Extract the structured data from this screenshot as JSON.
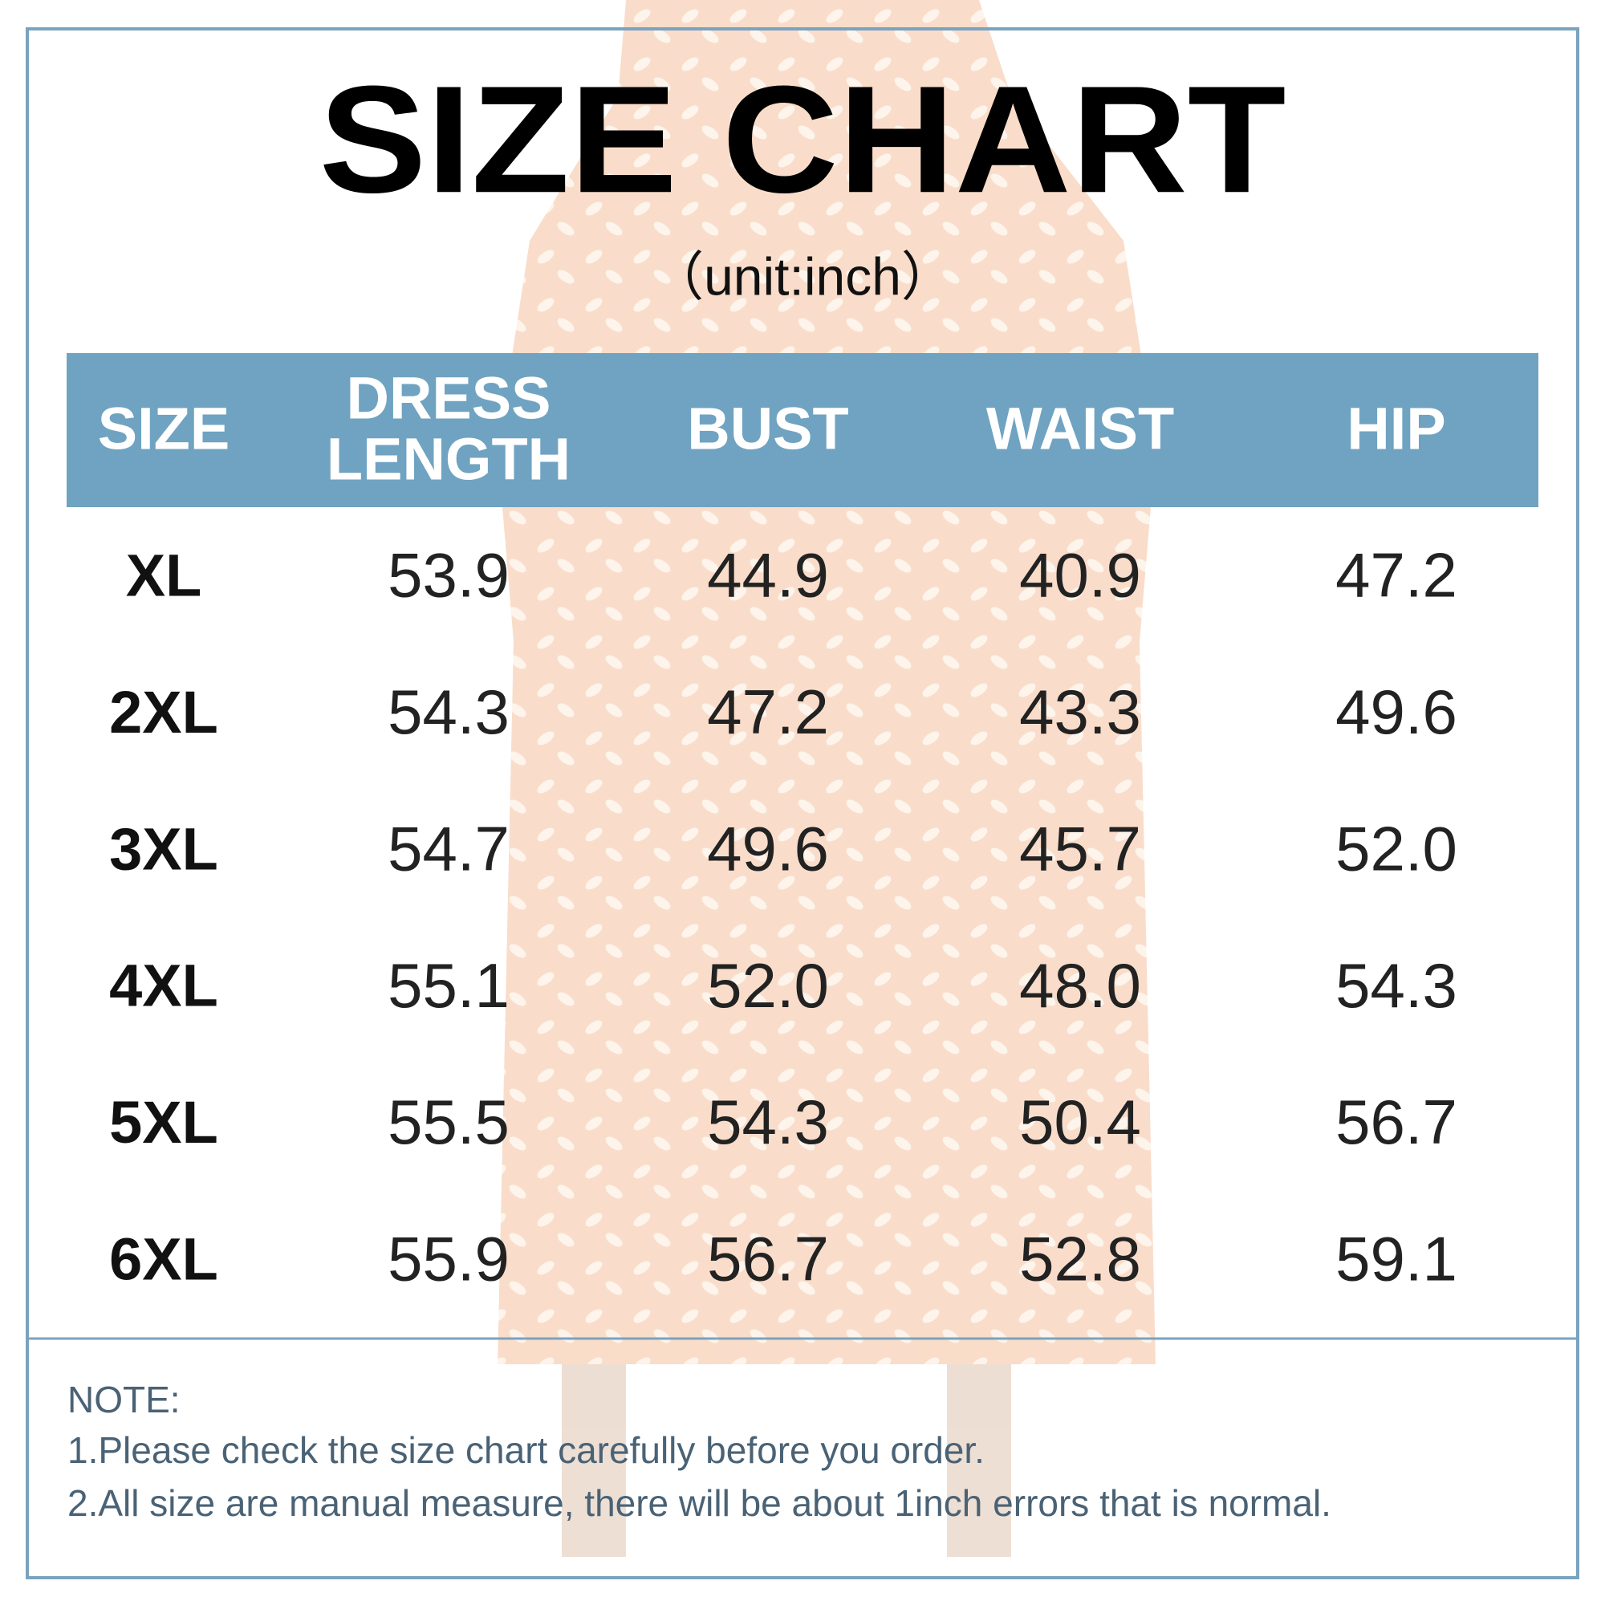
{
  "header": {
    "title": "SIZE CHART",
    "subtitle": "（unit:inch）"
  },
  "table": {
    "headers": [
      "SIZE",
      [
        "DRESS",
        "LENGTH"
      ],
      "BUST",
      "WAIST",
      "HIP"
    ],
    "rows": [
      [
        "XL",
        "53.9",
        "44.9",
        "40.9",
        "47.2"
      ],
      [
        "2XL",
        "54.3",
        "47.2",
        "43.3",
        "49.6"
      ],
      [
        "3XL",
        "54.7",
        "49.6",
        "45.7",
        "52.0"
      ],
      [
        "4XL",
        "55.1",
        "52.0",
        "48.0",
        "54.3"
      ],
      [
        "5XL",
        "55.5",
        "54.3",
        "50.4",
        "56.7"
      ],
      [
        "6XL",
        "55.9",
        "56.7",
        "52.8",
        "59.1"
      ]
    ]
  },
  "note": {
    "label": "NOTE:",
    "lines": [
      "1.Please check the size chart carefully before you order.",
      "2.All size are manual measure, there will be about 1inch errors that is normal."
    ]
  }
}
